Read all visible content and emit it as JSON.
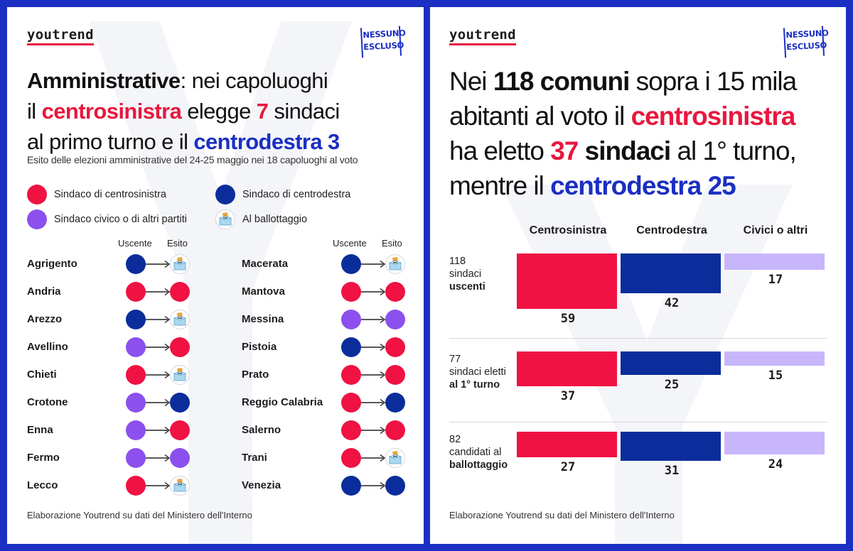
{
  "left_panel": {
    "brand": "youtrend",
    "badge": [
      "NESSUNO",
      "ESCLUSO"
    ],
    "headline_parts": [
      {
        "text": "Amministrative",
        "bold": true,
        "color": "dark"
      },
      {
        "text": ": nei capoluoghi",
        "bold": false,
        "color": "dark",
        "br": true
      },
      {
        "text": "il ",
        "bold": false,
        "color": "dark"
      },
      {
        "text": "centrosinistra",
        "bold": true,
        "color": "red"
      },
      {
        "text": " elegge ",
        "bold": false,
        "color": "dark"
      },
      {
        "text": "7",
        "bold": true,
        "color": "red"
      },
      {
        "text": " sindaci",
        "bold": false,
        "color": "dark",
        "br": true
      },
      {
        "text": "al primo turno e il ",
        "bold": false,
        "color": "dark"
      },
      {
        "text": "centrodestra 3",
        "bold": true,
        "color": "blue"
      }
    ],
    "subtitle": "Esito delle elezioni amministrative del 24-25 maggio nei 18 capoluoghi al voto",
    "legend": [
      {
        "label": "Sindaco di centrosinistra",
        "icon": "cs"
      },
      {
        "label": "Sindaco di centrodestra",
        "icon": "cd"
      },
      {
        "label": "Sindaco civico o di altri partiti",
        "icon": "cv"
      },
      {
        "label": "Al ballottaggio",
        "icon": "ballot"
      }
    ],
    "col_from": "Uscente",
    "col_to": "Esito",
    "source": "Elaborazione Youtrend su dati del Ministero dell'Interno"
  },
  "right_panel": {
    "brand": "youtrend",
    "badge": [
      "NESSUNO",
      "ESCLUSO"
    ],
    "headline_parts": [
      {
        "text": "Nei ",
        "bold": false,
        "color": "dark"
      },
      {
        "text": "118 comuni",
        "bold": true,
        "color": "dark"
      },
      {
        "text": " sopra i 15 mila",
        "bold": false,
        "color": "dark",
        "br": true
      },
      {
        "text": "abitanti al voto il ",
        "bold": false,
        "color": "dark"
      },
      {
        "text": "centrosinistra",
        "bold": true,
        "color": "red",
        "br": true
      },
      {
        "text": "ha eletto ",
        "bold": false,
        "color": "dark"
      },
      {
        "text": "37",
        "bold": true,
        "color": "red"
      },
      {
        "text": " sindaci",
        "bold": true,
        "color": "dark"
      },
      {
        "text": " al 1° turno,",
        "bold": false,
        "color": "dark",
        "br": true
      },
      {
        "text": "mentre il ",
        "bold": false,
        "color": "dark"
      },
      {
        "text": "centrodestra 25",
        "bold": true,
        "color": "blue"
      }
    ],
    "source": "Elaborazione Youtrend su dati del Ministero dell'Interno"
  },
  "colors": {
    "frame": "#1b2fc2",
    "centrosinistra": "#ef1243",
    "centrodestra": "#0b2d9b",
    "civici": "#8b50ed",
    "civici_bar": "#c8b6fb",
    "ballot": "#bfe3f5"
  },
  "chart_data": [
    {
      "type": "table",
      "columns": [
        "Uscente",
        "Esito"
      ],
      "categories_legend": {
        "cs": "Sindaco di centrosinistra",
        "cd": "Sindaco di centrodestra",
        "cv": "Sindaco civico o di altri partiti",
        "ballot": "Al ballottaggio"
      },
      "rows": [
        {
          "city": "Agrigento",
          "from": "cd",
          "to": "ballot"
        },
        {
          "city": "Andria",
          "from": "cs",
          "to": "cs"
        },
        {
          "city": "Arezzo",
          "from": "cd",
          "to": "ballot"
        },
        {
          "city": "Avellino",
          "from": "cv",
          "to": "cs"
        },
        {
          "city": "Chieti",
          "from": "cs",
          "to": "ballot"
        },
        {
          "city": "Crotone",
          "from": "cv",
          "to": "cd"
        },
        {
          "city": "Enna",
          "from": "cv",
          "to": "cs"
        },
        {
          "city": "Fermo",
          "from": "cv",
          "to": "cv"
        },
        {
          "city": "Lecco",
          "from": "cs",
          "to": "ballot"
        },
        {
          "city": "Macerata",
          "from": "cd",
          "to": "ballot"
        },
        {
          "city": "Mantova",
          "from": "cs",
          "to": "cs"
        },
        {
          "city": "Messina",
          "from": "cv",
          "to": "cv"
        },
        {
          "city": "Pistoia",
          "from": "cd",
          "to": "cs"
        },
        {
          "city": "Prato",
          "from": "cs",
          "to": "cs"
        },
        {
          "city": "Reggio Calabria",
          "from": "cs",
          "to": "cd"
        },
        {
          "city": "Salerno",
          "from": "cs",
          "to": "cs"
        },
        {
          "city": "Trani",
          "from": "cs",
          "to": "ballot"
        },
        {
          "city": "Venezia",
          "from": "cd",
          "to": "cd"
        }
      ]
    },
    {
      "type": "bar",
      "categories": [
        "Centrosinistra",
        "Centrodestra",
        "Civici o altri"
      ],
      "groups": [
        {
          "label_lines": [
            {
              "text": "118",
              "bold": false
            },
            {
              "text": "sindaci",
              "bold": false
            },
            {
              "text": "uscenti",
              "bold": true
            }
          ],
          "values": [
            59,
            42,
            17
          ]
        },
        {
          "label_lines": [
            {
              "text": "77",
              "bold": false
            },
            {
              "text": "sindaci eletti",
              "bold": false
            },
            {
              "text": "al 1° turno",
              "bold": true
            }
          ],
          "values": [
            37,
            25,
            15
          ]
        },
        {
          "label_lines": [
            {
              "text": "82",
              "bold": false
            },
            {
              "text": "candidati al",
              "bold": false
            },
            {
              "text": "ballottaggio",
              "bold": true
            }
          ],
          "values": [
            27,
            31,
            24
          ]
        }
      ],
      "series_colors": [
        "#ef1243",
        "#0b2d9b",
        "#c8b6fb"
      ]
    }
  ]
}
